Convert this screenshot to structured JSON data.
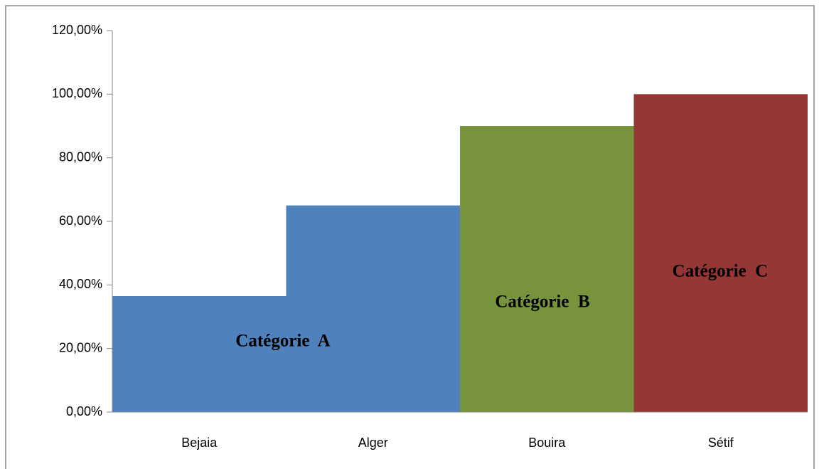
{
  "chart_data": {
    "type": "bar",
    "categories": [
      "Bejaia",
      "Alger",
      "Bouira",
      "Sétif"
    ],
    "values": [
      36.5,
      65,
      90,
      100
    ],
    "colors": [
      "#4f81bd",
      "#4f81bd",
      "#77933c",
      "#953735"
    ],
    "ylim": [
      0,
      120
    ],
    "yticks": [
      {
        "value": 0,
        "label": "0,00%"
      },
      {
        "value": 20,
        "label": "20,00%"
      },
      {
        "value": 40,
        "label": "40,00%"
      },
      {
        "value": 60,
        "label": "60,00%"
      },
      {
        "value": 80,
        "label": "80,00%"
      },
      {
        "value": 100,
        "label": "100,00%"
      },
      {
        "value": 120,
        "label": "120,00%"
      }
    ],
    "grid": false,
    "annotations": [
      "Catégorie  A",
      "Catégorie  B",
      "Catégorie  C"
    ]
  }
}
